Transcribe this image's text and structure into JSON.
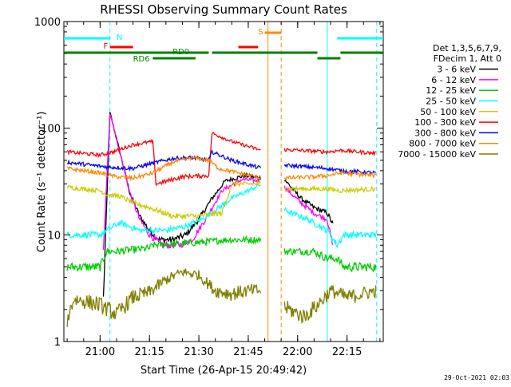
{
  "chart_data": {
    "type": "line",
    "title": "RHESSI Observing Summary Count Rates",
    "xlabel": "Start Time (26-Apr-15 20:49:42)",
    "ylabel": "Count Rate (s⁻¹ detector⁻¹)",
    "yscale": "log",
    "xlim": [
      "20:49",
      "22:26"
    ],
    "ylim": [
      1,
      1000
    ],
    "x_ticks": [
      "21:00",
      "21:15",
      "21:30",
      "21:45",
      "22:00",
      "22:15"
    ],
    "y_ticks": [
      "1",
      "10",
      "100",
      "1000"
    ],
    "grid": false,
    "legend_header": [
      "Det 1,3,5,6,7,9,",
      "FDecim 1, Att 0"
    ],
    "legend_placement": "right",
    "timestamp": "29-Oct-2021 02:03",
    "series": [
      {
        "name": "3 - 6 keV",
        "color": "#000000",
        "points": [
          [
            "20:50",
            null
          ],
          [
            "21:01",
            2.5
          ],
          [
            "21:03",
            140
          ],
          [
            "21:06",
            60
          ],
          [
            "21:09",
            25
          ],
          [
            "21:12",
            15
          ],
          [
            "21:15",
            11
          ],
          [
            "21:18",
            9
          ],
          [
            "21:22",
            9
          ],
          [
            "21:26",
            10
          ],
          [
            "21:30",
            14
          ],
          [
            "21:34",
            22
          ],
          [
            "21:38",
            32
          ],
          [
            "21:44",
            36
          ],
          [
            "21:49",
            34
          ],
          [
            "21:51",
            null
          ],
          [
            "21:56",
            33
          ],
          [
            "22:01",
            22
          ],
          [
            "22:05",
            18
          ],
          [
            "22:09",
            16
          ],
          [
            "22:11",
            12
          ],
          [
            "22:13",
            null
          ]
        ]
      },
      {
        "name": "6 - 12 keV",
        "color": "#ff00ff",
        "points": [
          [
            "20:50",
            null
          ],
          [
            "21:01",
            7
          ],
          [
            "21:03",
            140
          ],
          [
            "21:06",
            60
          ],
          [
            "21:09",
            25
          ],
          [
            "21:12",
            14
          ],
          [
            "21:15",
            10
          ],
          [
            "21:19",
            8
          ],
          [
            "21:24",
            8
          ],
          [
            "21:28",
            9
          ],
          [
            "21:32",
            14
          ],
          [
            "21:37",
            26
          ],
          [
            "21:43",
            33
          ],
          [
            "21:49",
            32
          ],
          [
            "21:51",
            null
          ],
          [
            "21:56",
            28
          ],
          [
            "22:01",
            20
          ],
          [
            "22:05",
            16
          ],
          [
            "22:09",
            14
          ],
          [
            "22:11",
            7
          ],
          [
            "22:13",
            null
          ]
        ]
      },
      {
        "name": "12 - 25 keV",
        "color": "#00cc00",
        "points": [
          [
            "20:50",
            5
          ],
          [
            "21:00",
            5
          ],
          [
            "21:02",
            7
          ],
          [
            "21:05",
            7
          ],
          [
            "21:15",
            7.5
          ],
          [
            "21:16",
            8
          ],
          [
            "21:30",
            8.5
          ],
          [
            "21:39",
            9
          ],
          [
            "21:49",
            9
          ],
          [
            "21:51",
            null
          ],
          [
            "21:56",
            7
          ],
          [
            "22:05",
            7
          ],
          [
            "22:09",
            6
          ],
          [
            "22:12",
            6
          ],
          [
            "22:14",
            5
          ],
          [
            "22:24",
            5
          ]
        ]
      },
      {
        "name": "25 - 50 keV",
        "color": "#00ffff",
        "points": [
          [
            "20:50",
            10
          ],
          [
            "21:00",
            10
          ],
          [
            "21:02",
            11
          ],
          [
            "21:06",
            13
          ],
          [
            "21:12",
            11
          ],
          [
            "21:20",
            11
          ],
          [
            "21:26",
            12
          ],
          [
            "21:31",
            14
          ],
          [
            "21:36",
            18
          ],
          [
            "21:40",
            22
          ],
          [
            "21:45",
            26
          ],
          [
            "21:49",
            30
          ],
          [
            "21:51",
            null
          ],
          [
            "21:56",
            17
          ],
          [
            "22:03",
            14
          ],
          [
            "22:09",
            11
          ],
          [
            "22:12",
            8
          ],
          [
            "22:14",
            10
          ],
          [
            "22:24",
            10
          ]
        ]
      },
      {
        "name": "50 - 100 keV",
        "color": "#cccc00",
        "points": [
          [
            "20:50",
            28
          ],
          [
            "21:00",
            26
          ],
          [
            "21:02",
            24
          ],
          [
            "21:06",
            23
          ],
          [
            "21:10",
            20
          ],
          [
            "21:15",
            18
          ],
          [
            "21:22",
            15
          ],
          [
            "21:30",
            15
          ],
          [
            "21:37",
            16
          ],
          [
            "21:40",
            30
          ],
          [
            "21:45",
            30
          ],
          [
            "21:49",
            30
          ],
          [
            "21:51",
            null
          ],
          [
            "21:56",
            27
          ],
          [
            "22:09",
            27
          ],
          [
            "22:13",
            26
          ],
          [
            "22:24",
            27
          ]
        ]
      },
      {
        "name": "100 - 300 keV",
        "color": "#ff0000",
        "points": [
          [
            "20:50",
            60
          ],
          [
            "21:00",
            56
          ],
          [
            "21:04",
            60
          ],
          [
            "21:10",
            70
          ],
          [
            "21:16",
            75
          ],
          [
            "21:17",
            30
          ],
          [
            "21:25",
            35
          ],
          [
            "21:33",
            36
          ],
          [
            "21:34",
            90
          ],
          [
            "21:40",
            75
          ],
          [
            "21:49",
            62
          ],
          [
            "21:51",
            null
          ],
          [
            "21:56",
            63
          ],
          [
            "22:09",
            60
          ],
          [
            "22:13",
            62
          ],
          [
            "22:24",
            58
          ]
        ]
      },
      {
        "name": "300 - 800 keV",
        "color": "#0000ff",
        "points": [
          [
            "20:50",
            48
          ],
          [
            "21:00",
            44
          ],
          [
            "21:04",
            43
          ],
          [
            "21:10",
            42
          ],
          [
            "21:16",
            47
          ],
          [
            "21:22",
            52
          ],
          [
            "21:28",
            53
          ],
          [
            "21:33",
            50
          ],
          [
            "21:34",
            60
          ],
          [
            "21:40",
            50
          ],
          [
            "21:49",
            42
          ],
          [
            "21:51",
            null
          ],
          [
            "21:56",
            45
          ],
          [
            "22:09",
            42
          ],
          [
            "22:13",
            40
          ],
          [
            "22:24",
            38
          ]
        ]
      },
      {
        "name": "800 - 7000 keV",
        "color": "#ff8800",
        "points": [
          [
            "20:50",
            42
          ],
          [
            "21:00",
            38
          ],
          [
            "21:05",
            35
          ],
          [
            "21:10",
            34
          ],
          [
            "21:16",
            38
          ],
          [
            "21:22",
            48
          ],
          [
            "21:28",
            53
          ],
          [
            "21:33",
            50
          ],
          [
            "21:36",
            42
          ],
          [
            "21:42",
            38
          ],
          [
            "21:49",
            34
          ],
          [
            "21:51",
            null
          ],
          [
            "21:56",
            34
          ],
          [
            "22:05",
            35
          ],
          [
            "22:09",
            36
          ],
          [
            "22:13",
            38
          ],
          [
            "22:24",
            36
          ]
        ]
      },
      {
        "name": "7000 - 15000 keV",
        "color": "#808000",
        "points": [
          [
            "20:50",
            1.6
          ],
          [
            "20:52",
            2.5
          ],
          [
            "20:55",
            2.4
          ],
          [
            "21:00",
            2.2
          ],
          [
            "21:05",
            1.8
          ],
          [
            "21:10",
            2.6
          ],
          [
            "21:15",
            2.9
          ],
          [
            "21:20",
            3.8
          ],
          [
            "21:25",
            4.5
          ],
          [
            "21:30",
            4.2
          ],
          [
            "21:35",
            3.0
          ],
          [
            "21:40",
            2.8
          ],
          [
            "21:45",
            3.0
          ],
          [
            "21:49",
            3.0
          ],
          [
            "21:51",
            null
          ],
          [
            "21:56",
            2.1
          ],
          [
            "22:02",
            1.7
          ],
          [
            "22:06",
            2.2
          ],
          [
            "22:10",
            3.0
          ],
          [
            "22:15",
            2.6
          ],
          [
            "22:24",
            3.0
          ]
        ]
      }
    ],
    "flags": [
      {
        "label": "N",
        "color": "#00ffff",
        "segments": [
          [
            "20:49",
            "21:03"
          ],
          [
            "22:12",
            "22:26"
          ]
        ]
      },
      {
        "label": "F",
        "color": "#ff0000",
        "segments": [
          [
            "21:03",
            "21:10"
          ],
          [
            "21:42",
            "21:48"
          ]
        ]
      },
      {
        "label": "S",
        "color": "#ff8800",
        "segments": [
          [
            "21:50",
            "21:55"
          ]
        ]
      },
      {
        "label": "RD0",
        "color": "#008000",
        "segments": [
          [
            "20:49",
            "21:33"
          ],
          [
            "21:34",
            "22:06"
          ],
          [
            "22:13",
            "22:26"
          ]
        ]
      },
      {
        "label": "RD6",
        "color": "#008000",
        "segments": [
          [
            "21:16",
            "21:29"
          ],
          [
            "22:06",
            "22:13"
          ]
        ]
      }
    ],
    "vertical_markers": [
      {
        "time": "21:03",
        "color": "#00ffff",
        "style": "dashed"
      },
      {
        "time": "21:51",
        "color": "#ff8800",
        "style": "solid"
      },
      {
        "time": "21:55",
        "color": "#ff8800",
        "style": "dashed"
      },
      {
        "time": "22:09",
        "color": "#00ffff",
        "style": "solid"
      },
      {
        "time": "22:24",
        "color": "#00ffff",
        "style": "dashed"
      }
    ]
  }
}
